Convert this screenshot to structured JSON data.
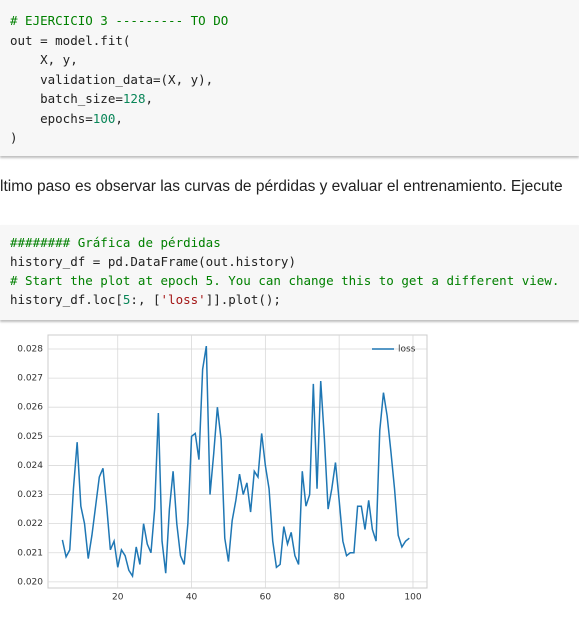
{
  "cells": [
    {
      "lines": [
        [
          "# EJERCICIO 3 --------- TO DO"
        ],
        [
          "out = model.fit("
        ],
        [
          "    X, y,"
        ],
        [
          "    validation_data=(X, y),"
        ],
        [
          "    batch_size=",
          "128",
          ","
        ],
        [
          "    epochs=",
          "100",
          ","
        ],
        [
          ")"
        ]
      ]
    },
    {
      "lines": [
        [
          "######## Gráfica de pérdidas"
        ],
        [
          "history_df = pd.DataFrame(out.history)"
        ],
        [
          "# Start the plot at epoch 5. You can change this to get a different view."
        ],
        [
          "history_df.loc[",
          "5",
          ":, [",
          "'loss'",
          "]].plot();"
        ]
      ]
    }
  ],
  "text": "ltimo paso es observar las curvas de pérdidas y evaluar el entrenamiento. Ejecute",
  "chart_data": {
    "type": "line",
    "grid": true,
    "legend": "upper right",
    "x": [
      5,
      6,
      7,
      8,
      9,
      10,
      11,
      12,
      13,
      14,
      15,
      16,
      17,
      18,
      19,
      20,
      21,
      22,
      23,
      24,
      25,
      26,
      27,
      28,
      29,
      30,
      31,
      32,
      33,
      34,
      35,
      36,
      37,
      38,
      39,
      40,
      41,
      42,
      43,
      44,
      45,
      46,
      47,
      48,
      49,
      50,
      51,
      52,
      53,
      54,
      55,
      56,
      57,
      58,
      59,
      60,
      61,
      62,
      63,
      64,
      65,
      66,
      67,
      68,
      69,
      70,
      71,
      72,
      73,
      74,
      75,
      76,
      77,
      78,
      79,
      80,
      81,
      82,
      83,
      84,
      85,
      86,
      87,
      88,
      89,
      90,
      91,
      92,
      93,
      94,
      95,
      96,
      97,
      98,
      99
    ],
    "series": [
      {
        "name": "loss",
        "color": "#1f77b4",
        "values": [
          0.02144,
          0.02086,
          0.0211,
          0.0232,
          0.0248,
          0.0226,
          0.022,
          0.0208,
          0.0216,
          0.0226,
          0.0236,
          0.0239,
          0.0226,
          0.0211,
          0.0214,
          0.0205,
          0.0211,
          0.0209,
          0.0204,
          0.0202,
          0.0212,
          0.0206,
          0.022,
          0.0213,
          0.021,
          0.0225,
          0.0258,
          0.0214,
          0.0203,
          0.0225,
          0.0238,
          0.022,
          0.0209,
          0.0206,
          0.022,
          0.025,
          0.0251,
          0.0242,
          0.0273,
          0.0281,
          0.023,
          0.0244,
          0.026,
          0.0249,
          0.0215,
          0.0207,
          0.0221,
          0.0228,
          0.0237,
          0.023,
          0.0234,
          0.0224,
          0.0238,
          0.0236,
          0.0251,
          0.024,
          0.0232,
          0.0214,
          0.0205,
          0.0206,
          0.0219,
          0.0213,
          0.0217,
          0.0209,
          0.0206,
          0.0238,
          0.0226,
          0.023,
          0.0268,
          0.0232,
          0.0269,
          0.0249,
          0.0225,
          0.0232,
          0.0241,
          0.0228,
          0.0214,
          0.0209,
          0.021,
          0.021,
          0.0226,
          0.0226,
          0.0218,
          0.0228,
          0.0218,
          0.0214,
          0.0252,
          0.0265,
          0.0257,
          0.0245,
          0.0232,
          0.0216,
          0.0212,
          0.0214,
          0.0215
        ]
      }
    ],
    "xlim": [
      1.1,
      103.8
    ],
    "xticks": [
      20,
      40,
      60,
      80,
      100
    ],
    "ylim": [
      0.01979,
      0.02848
    ],
    "yticks": [
      {
        "value": 0.02,
        "label": "0.020"
      },
      0.021,
      0.022,
      0.023,
      0.024,
      0.025,
      0.026,
      0.027,
      0.028
    ]
  }
}
